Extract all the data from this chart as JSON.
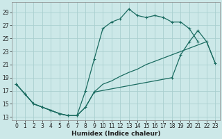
{
  "xlabel": "Humidex (Indice chaleur)",
  "bg_color": "#cce8e8",
  "grid_color": "#aacfcf",
  "line_color": "#1a6b60",
  "xlim": [
    -0.5,
    23.5
  ],
  "ylim": [
    12.5,
    30.5
  ],
  "xticks": [
    0,
    1,
    2,
    3,
    4,
    5,
    6,
    7,
    8,
    9,
    10,
    11,
    12,
    13,
    14,
    15,
    16,
    17,
    18,
    19,
    20,
    21,
    22,
    23
  ],
  "yticks": [
    13,
    15,
    17,
    19,
    21,
    23,
    25,
    27,
    29
  ],
  "line1_x": [
    0,
    1,
    2,
    3,
    4,
    5,
    6,
    7,
    8,
    9,
    10,
    11,
    12,
    13,
    14,
    15,
    16,
    17,
    18,
    19,
    20,
    21,
    22,
    23
  ],
  "line1_y": [
    18.0,
    16.5,
    15.0,
    14.5,
    14.0,
    13.5,
    13.2,
    13.2,
    17.0,
    21.8,
    26.5,
    27.5,
    28.0,
    29.5,
    28.5,
    28.2,
    28.5,
    28.2,
    27.5,
    27.5,
    26.5,
    24.5,
    null,
    null
  ],
  "line2_x": [
    0,
    1,
    2,
    3,
    4,
    5,
    6,
    7,
    8,
    9,
    10,
    11,
    12,
    13,
    14,
    15,
    16,
    17,
    18,
    19,
    20,
    21,
    22,
    23
  ],
  "line2_y": [
    18.0,
    16.5,
    15.0,
    14.5,
    14.0,
    13.5,
    13.2,
    13.2,
    14.5,
    16.8,
    null,
    null,
    null,
    null,
    null,
    null,
    null,
    null,
    19.0,
    22.5,
    24.5,
    26.2,
    24.5,
    21.2
  ],
  "line3_x": [
    0,
    1,
    2,
    3,
    4,
    5,
    6,
    7,
    8,
    9,
    10,
    11,
    12,
    13,
    14,
    15,
    16,
    17,
    18,
    19,
    20,
    21,
    22,
    23
  ],
  "line3_y": [
    18.0,
    16.5,
    15.0,
    14.5,
    14.0,
    13.5,
    13.2,
    13.2,
    14.5,
    16.8,
    18.0,
    18.5,
    19.2,
    19.8,
    20.3,
    21.0,
    21.5,
    22.0,
    22.5,
    23.0,
    23.5,
    24.0,
    24.5,
    21.2
  ]
}
